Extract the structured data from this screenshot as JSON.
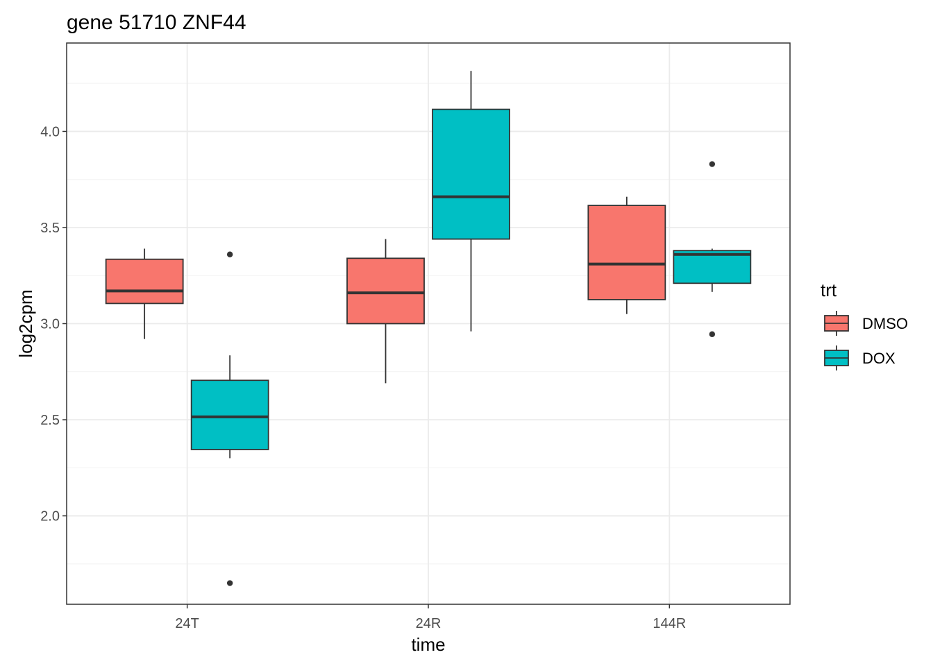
{
  "chart_data": {
    "type": "boxplot",
    "title": "gene 51710 ZNF44",
    "xlabel": "time",
    "ylabel": "log2cpm",
    "categories": [
      "24T",
      "24R",
      "144R"
    ],
    "ylim": [
      1.54,
      4.46
    ],
    "yticks": [
      2.0,
      2.5,
      3.0,
      3.5,
      4.0
    ],
    "ytick_labels": [
      "2.0",
      "2.5",
      "3.0",
      "3.5",
      "4.0"
    ],
    "grid": true,
    "legend": {
      "title": "trt",
      "position": "right"
    },
    "series": [
      {
        "name": "DMSO",
        "color": "#F8766D",
        "boxes": [
          {
            "whisker_low": 2.92,
            "q1": 3.105,
            "median": 3.17,
            "q3": 3.335,
            "whisker_high": 3.39,
            "outliers": []
          },
          {
            "whisker_low": 2.69,
            "q1": 3.0,
            "median": 3.16,
            "q3": 3.34,
            "whisker_high": 3.44,
            "outliers": []
          },
          {
            "whisker_low": 3.05,
            "q1": 3.125,
            "median": 3.31,
            "q3": 3.615,
            "whisker_high": 3.66,
            "outliers": []
          }
        ]
      },
      {
        "name": "DOX",
        "color": "#00BFC4",
        "boxes": [
          {
            "whisker_low": 2.3,
            "q1": 2.345,
            "median": 2.515,
            "q3": 2.705,
            "whisker_high": 2.835,
            "outliers": [
              3.36,
              1.65
            ]
          },
          {
            "whisker_low": 2.96,
            "q1": 3.44,
            "median": 3.66,
            "q3": 4.115,
            "whisker_high": 4.315,
            "outliers": []
          },
          {
            "whisker_low": 3.165,
            "q1": 3.21,
            "median": 3.36,
            "q3": 3.38,
            "whisker_high": 3.39,
            "outliers": [
              3.83,
              2.945
            ]
          }
        ]
      }
    ]
  }
}
